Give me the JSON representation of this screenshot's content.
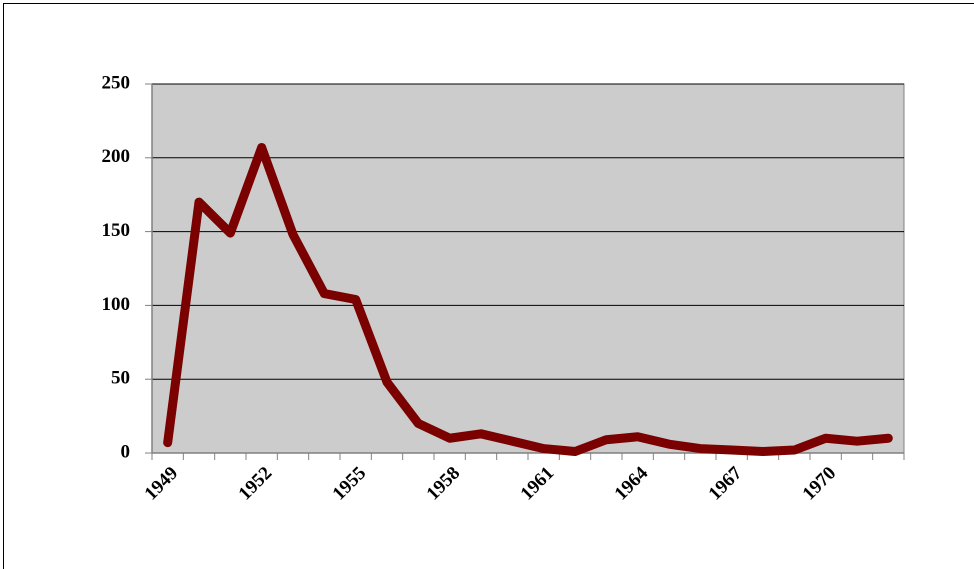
{
  "chart_data": {
    "type": "line",
    "categories": [
      "1949",
      null,
      null,
      "1952",
      null,
      null,
      "1955",
      null,
      null,
      "1958",
      null,
      null,
      "1961",
      null,
      null,
      "1964",
      null,
      null,
      "1967",
      null,
      null,
      "1970",
      null,
      null
    ],
    "series": [
      {
        "color": "#7b0000",
        "values": [
          7,
          170,
          149,
          207,
          148,
          108,
          104,
          48,
          20,
          10,
          13,
          8,
          3,
          1,
          9,
          11,
          6,
          3,
          2,
          1,
          2,
          10,
          8,
          10
        ]
      }
    ],
    "ylim": [
      0,
      250
    ],
    "yticks": [
      0,
      50,
      100,
      150,
      200,
      250
    ],
    "grid": true
  }
}
